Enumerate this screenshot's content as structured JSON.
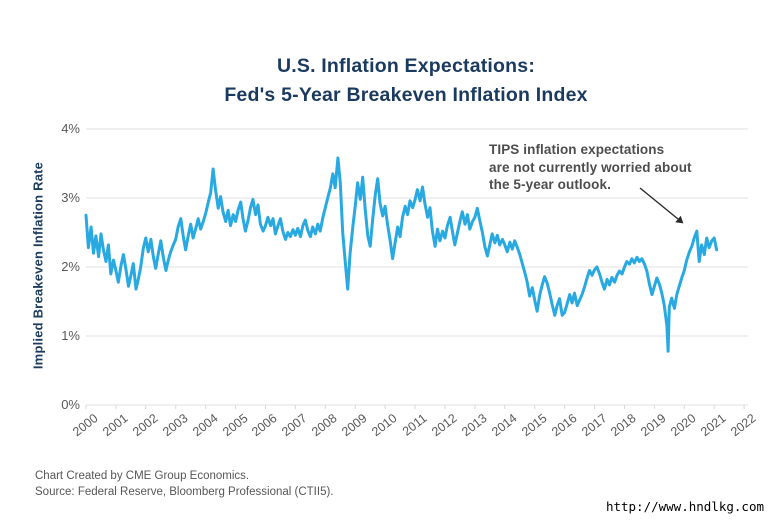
{
  "title": {
    "line1": "U.S. Inflation Expectations:",
    "line2": "Fed's 5-Year Breakeven Inflation Index",
    "color": "#1b3a5f"
  },
  "annotation": {
    "lines": [
      "TIPS inflation expectations",
      "are not currently worried about",
      "the 5-year outlook."
    ],
    "color": "#4d4d4d"
  },
  "footer": {
    "line1": "Chart Created by CME Group Economics.",
    "line2": "Source: Federal Reserve, Bloomberg Professional (CTII5).",
    "color": "#575757"
  },
  "watermark": {
    "text": "http://www.hndlkg.com"
  },
  "chart_data": {
    "type": "line",
    "title": "U.S. Inflation Expectations: Fed's 5-Year Breakeven Inflation Index",
    "xlabel": "",
    "ylabel": "Implied Breakeven Inflation Rate",
    "ylim": [
      0,
      4
    ],
    "y_ticks": [
      {
        "value": 4,
        "label": "4%"
      },
      {
        "value": 3,
        "label": "3%"
      },
      {
        "value": 2,
        "label": "2%"
      },
      {
        "value": 1,
        "label": "1%"
      },
      {
        "value": 0,
        "label": "0%"
      }
    ],
    "x_ticks": [
      "2000",
      "2001",
      "2002",
      "2003",
      "2004",
      "2005",
      "2006",
      "2007",
      "2008",
      "2009",
      "2010",
      "2011",
      "2012",
      "2013",
      "2014",
      "2015",
      "2016",
      "2017",
      "2018",
      "2019",
      "2020",
      "2021",
      "2022"
    ],
    "x_range": [
      2000,
      2022.13
    ],
    "grid": true,
    "legend": "none",
    "line_color": "#29a9e1",
    "grid_color": "#e7e7e7",
    "series": [
      {
        "name": "5-Year Breakeven Inflation Rate (CTII5)",
        "points": [
          [
            2000.0,
            2.75
          ],
          [
            2000.08,
            2.28
          ],
          [
            2000.17,
            2.58
          ],
          [
            2000.25,
            2.2
          ],
          [
            2000.33,
            2.45
          ],
          [
            2000.42,
            2.15
          ],
          [
            2000.5,
            2.48
          ],
          [
            2000.58,
            2.25
          ],
          [
            2000.67,
            2.08
          ],
          [
            2000.75,
            2.32
          ],
          [
            2000.83,
            1.9
          ],
          [
            2000.92,
            2.1
          ],
          [
            2001.0,
            1.95
          ],
          [
            2001.08,
            1.78
          ],
          [
            2001.17,
            2.02
          ],
          [
            2001.25,
            2.18
          ],
          [
            2001.33,
            1.98
          ],
          [
            2001.42,
            1.72
          ],
          [
            2001.5,
            1.88
          ],
          [
            2001.58,
            2.05
          ],
          [
            2001.67,
            1.68
          ],
          [
            2001.75,
            1.82
          ],
          [
            2001.83,
            2.0
          ],
          [
            2001.92,
            2.28
          ],
          [
            2002.0,
            2.42
          ],
          [
            2002.08,
            2.22
          ],
          [
            2002.17,
            2.4
          ],
          [
            2002.25,
            2.15
          ],
          [
            2002.33,
            1.98
          ],
          [
            2002.42,
            2.2
          ],
          [
            2002.5,
            2.38
          ],
          [
            2002.58,
            2.15
          ],
          [
            2002.67,
            1.95
          ],
          [
            2002.75,
            2.1
          ],
          [
            2002.83,
            2.22
          ],
          [
            2002.92,
            2.32
          ],
          [
            2003.0,
            2.4
          ],
          [
            2003.08,
            2.58
          ],
          [
            2003.17,
            2.7
          ],
          [
            2003.25,
            2.45
          ],
          [
            2003.33,
            2.25
          ],
          [
            2003.42,
            2.46
          ],
          [
            2003.5,
            2.62
          ],
          [
            2003.58,
            2.42
          ],
          [
            2003.67,
            2.56
          ],
          [
            2003.75,
            2.7
          ],
          [
            2003.83,
            2.55
          ],
          [
            2003.92,
            2.66
          ],
          [
            2004.0,
            2.78
          ],
          [
            2004.08,
            2.92
          ],
          [
            2004.17,
            3.08
          ],
          [
            2004.25,
            3.42
          ],
          [
            2004.33,
            3.12
          ],
          [
            2004.42,
            2.85
          ],
          [
            2004.5,
            3.02
          ],
          [
            2004.58,
            2.8
          ],
          [
            2004.67,
            2.66
          ],
          [
            2004.75,
            2.82
          ],
          [
            2004.83,
            2.6
          ],
          [
            2004.92,
            2.76
          ],
          [
            2005.0,
            2.66
          ],
          [
            2005.08,
            2.82
          ],
          [
            2005.17,
            2.94
          ],
          [
            2005.25,
            2.7
          ],
          [
            2005.33,
            2.52
          ],
          [
            2005.42,
            2.68
          ],
          [
            2005.5,
            2.86
          ],
          [
            2005.58,
            2.98
          ],
          [
            2005.67,
            2.76
          ],
          [
            2005.75,
            2.9
          ],
          [
            2005.83,
            2.62
          ],
          [
            2005.92,
            2.52
          ],
          [
            2006.0,
            2.6
          ],
          [
            2006.08,
            2.72
          ],
          [
            2006.17,
            2.6
          ],
          [
            2006.25,
            2.7
          ],
          [
            2006.33,
            2.48
          ],
          [
            2006.42,
            2.6
          ],
          [
            2006.5,
            2.7
          ],
          [
            2006.58,
            2.52
          ],
          [
            2006.67,
            2.4
          ],
          [
            2006.75,
            2.5
          ],
          [
            2006.83,
            2.44
          ],
          [
            2006.92,
            2.54
          ],
          [
            2007.0,
            2.46
          ],
          [
            2007.08,
            2.56
          ],
          [
            2007.17,
            2.44
          ],
          [
            2007.25,
            2.6
          ],
          [
            2007.33,
            2.68
          ],
          [
            2007.42,
            2.52
          ],
          [
            2007.5,
            2.44
          ],
          [
            2007.58,
            2.58
          ],
          [
            2007.67,
            2.48
          ],
          [
            2007.75,
            2.62
          ],
          [
            2007.83,
            2.52
          ],
          [
            2007.92,
            2.72
          ],
          [
            2008.0,
            2.86
          ],
          [
            2008.08,
            3.0
          ],
          [
            2008.17,
            3.15
          ],
          [
            2008.25,
            3.35
          ],
          [
            2008.33,
            3.15
          ],
          [
            2008.42,
            3.58
          ],
          [
            2008.5,
            3.22
          ],
          [
            2008.58,
            2.5
          ],
          [
            2008.67,
            2.05
          ],
          [
            2008.75,
            1.68
          ],
          [
            2008.83,
            2.2
          ],
          [
            2008.92,
            2.58
          ],
          [
            2009.0,
            2.88
          ],
          [
            2009.08,
            3.22
          ],
          [
            2009.17,
            2.98
          ],
          [
            2009.25,
            3.3
          ],
          [
            2009.33,
            2.85
          ],
          [
            2009.42,
            2.45
          ],
          [
            2009.5,
            2.3
          ],
          [
            2009.58,
            2.68
          ],
          [
            2009.67,
            3.05
          ],
          [
            2009.75,
            3.28
          ],
          [
            2009.83,
            2.92
          ],
          [
            2009.92,
            2.74
          ],
          [
            2010.0,
            2.88
          ],
          [
            2010.08,
            2.62
          ],
          [
            2010.17,
            2.38
          ],
          [
            2010.25,
            2.12
          ],
          [
            2010.33,
            2.34
          ],
          [
            2010.42,
            2.58
          ],
          [
            2010.5,
            2.44
          ],
          [
            2010.58,
            2.72
          ],
          [
            2010.67,
            2.88
          ],
          [
            2010.75,
            2.76
          ],
          [
            2010.83,
            2.96
          ],
          [
            2010.92,
            2.86
          ],
          [
            2011.0,
            2.98
          ],
          [
            2011.08,
            3.12
          ],
          [
            2011.17,
            2.96
          ],
          [
            2011.25,
            3.16
          ],
          [
            2011.33,
            2.92
          ],
          [
            2011.42,
            2.72
          ],
          [
            2011.5,
            2.86
          ],
          [
            2011.58,
            2.52
          ],
          [
            2011.67,
            2.3
          ],
          [
            2011.75,
            2.55
          ],
          [
            2011.83,
            2.38
          ],
          [
            2011.92,
            2.52
          ],
          [
            2012.0,
            2.42
          ],
          [
            2012.08,
            2.6
          ],
          [
            2012.17,
            2.72
          ],
          [
            2012.25,
            2.52
          ],
          [
            2012.33,
            2.32
          ],
          [
            2012.42,
            2.5
          ],
          [
            2012.5,
            2.66
          ],
          [
            2012.58,
            2.8
          ],
          [
            2012.67,
            2.62
          ],
          [
            2012.75,
            2.76
          ],
          [
            2012.83,
            2.55
          ],
          [
            2012.92,
            2.66
          ],
          [
            2013.0,
            2.72
          ],
          [
            2013.08,
            2.85
          ],
          [
            2013.17,
            2.66
          ],
          [
            2013.25,
            2.5
          ],
          [
            2013.33,
            2.3
          ],
          [
            2013.42,
            2.16
          ],
          [
            2013.5,
            2.32
          ],
          [
            2013.58,
            2.48
          ],
          [
            2013.67,
            2.35
          ],
          [
            2013.75,
            2.46
          ],
          [
            2013.83,
            2.32
          ],
          [
            2013.92,
            2.4
          ],
          [
            2014.0,
            2.32
          ],
          [
            2014.08,
            2.22
          ],
          [
            2014.17,
            2.36
          ],
          [
            2014.25,
            2.26
          ],
          [
            2014.33,
            2.38
          ],
          [
            2014.42,
            2.28
          ],
          [
            2014.5,
            2.18
          ],
          [
            2014.58,
            2.06
          ],
          [
            2014.67,
            1.92
          ],
          [
            2014.75,
            1.78
          ],
          [
            2014.83,
            1.58
          ],
          [
            2014.92,
            1.7
          ],
          [
            2015.0,
            1.52
          ],
          [
            2015.08,
            1.36
          ],
          [
            2015.17,
            1.6
          ],
          [
            2015.25,
            1.74
          ],
          [
            2015.33,
            1.86
          ],
          [
            2015.42,
            1.76
          ],
          [
            2015.5,
            1.62
          ],
          [
            2015.58,
            1.46
          ],
          [
            2015.67,
            1.3
          ],
          [
            2015.75,
            1.44
          ],
          [
            2015.83,
            1.54
          ],
          [
            2015.92,
            1.3
          ],
          [
            2016.0,
            1.34
          ],
          [
            2016.08,
            1.46
          ],
          [
            2016.17,
            1.6
          ],
          [
            2016.25,
            1.48
          ],
          [
            2016.33,
            1.62
          ],
          [
            2016.42,
            1.44
          ],
          [
            2016.5,
            1.52
          ],
          [
            2016.58,
            1.6
          ],
          [
            2016.67,
            1.72
          ],
          [
            2016.75,
            1.84
          ],
          [
            2016.83,
            1.95
          ],
          [
            2016.92,
            1.88
          ],
          [
            2017.0,
            1.96
          ],
          [
            2017.08,
            2.0
          ],
          [
            2017.17,
            1.9
          ],
          [
            2017.25,
            1.78
          ],
          [
            2017.33,
            1.68
          ],
          [
            2017.42,
            1.82
          ],
          [
            2017.5,
            1.74
          ],
          [
            2017.58,
            1.85
          ],
          [
            2017.67,
            1.78
          ],
          [
            2017.75,
            1.88
          ],
          [
            2017.83,
            1.94
          ],
          [
            2017.92,
            1.9
          ],
          [
            2018.0,
            2.0
          ],
          [
            2018.08,
            2.08
          ],
          [
            2018.17,
            2.04
          ],
          [
            2018.25,
            2.12
          ],
          [
            2018.33,
            2.06
          ],
          [
            2018.42,
            2.14
          ],
          [
            2018.5,
            2.08
          ],
          [
            2018.58,
            2.12
          ],
          [
            2018.67,
            2.04
          ],
          [
            2018.75,
            1.94
          ],
          [
            2018.83,
            1.76
          ],
          [
            2018.92,
            1.6
          ],
          [
            2019.0,
            1.72
          ],
          [
            2019.08,
            1.84
          ],
          [
            2019.17,
            1.75
          ],
          [
            2019.25,
            1.62
          ],
          [
            2019.33,
            1.45
          ],
          [
            2019.42,
            1.15
          ],
          [
            2019.46,
            0.78
          ],
          [
            2019.5,
            1.42
          ],
          [
            2019.58,
            1.55
          ],
          [
            2019.67,
            1.4
          ],
          [
            2019.75,
            1.6
          ],
          [
            2019.83,
            1.72
          ],
          [
            2019.92,
            1.85
          ],
          [
            2020.0,
            1.95
          ],
          [
            2020.08,
            2.1
          ],
          [
            2020.17,
            2.22
          ],
          [
            2020.25,
            2.3
          ],
          [
            2020.33,
            2.42
          ],
          [
            2020.42,
            2.52
          ],
          [
            2020.5,
            2.08
          ],
          [
            2020.58,
            2.32
          ],
          [
            2020.67,
            2.18
          ],
          [
            2020.75,
            2.42
          ],
          [
            2020.83,
            2.28
          ],
          [
            2020.92,
            2.38
          ],
          [
            2021.0,
            2.42
          ],
          [
            2021.08,
            2.25
          ]
        ]
      }
    ],
    "annotation_arrow": {
      "x1": 640,
      "y1": 188,
      "x2": 678,
      "y2": 219
    }
  }
}
